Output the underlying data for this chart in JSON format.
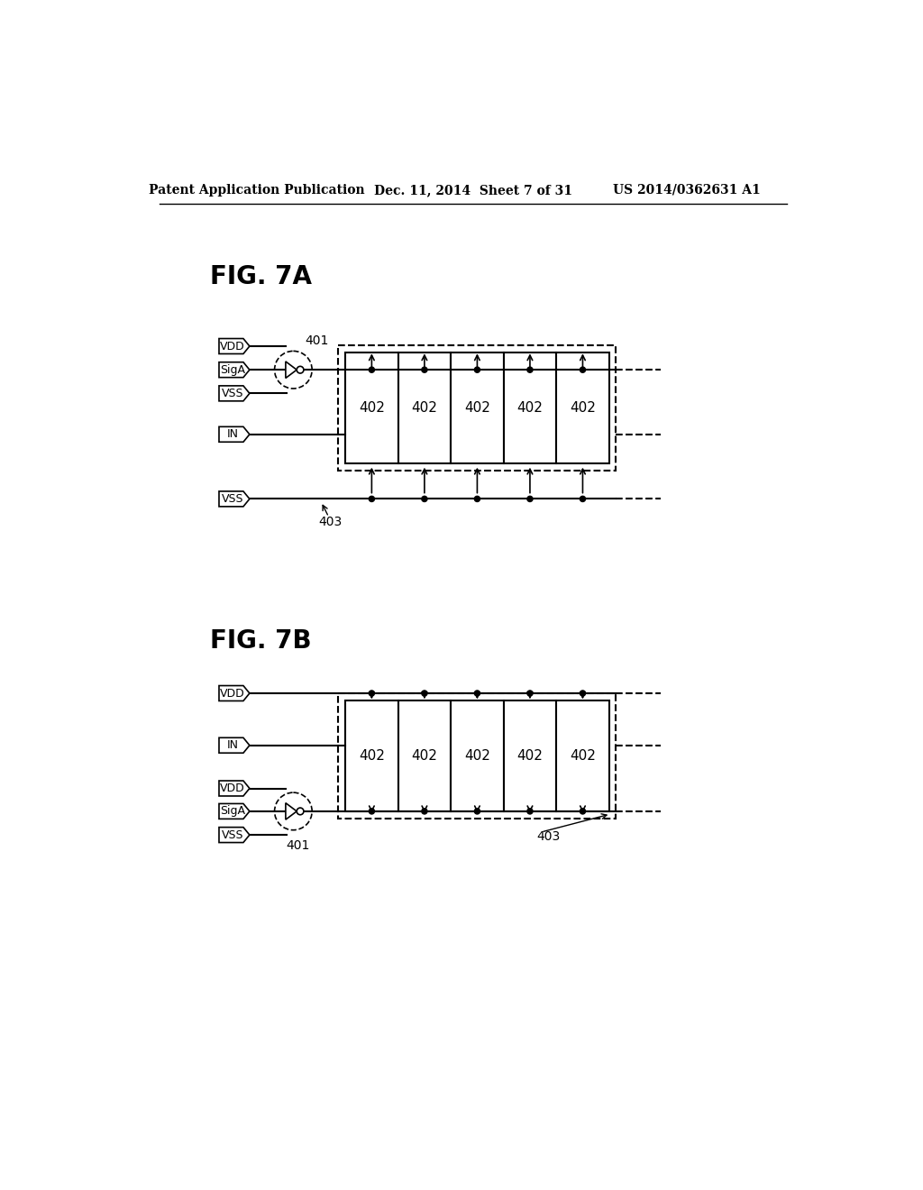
{
  "bg_color": "#ffffff",
  "header_left": "Patent Application Publication",
  "header_mid": "Dec. 11, 2014  Sheet 7 of 31",
  "header_right": "US 2014/0362631 A1",
  "fig7a_label": "FIG. 7A",
  "fig7b_label": "FIG. 7B",
  "cell_label": "402",
  "inverter_label_7a": "401",
  "inverter_label_7b": "401",
  "vss_bus_label": "403",
  "vss_bus_label_b": "403"
}
